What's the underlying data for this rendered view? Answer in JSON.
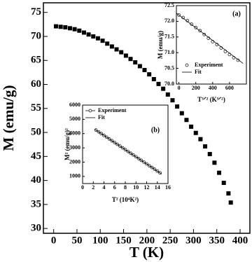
{
  "chart_data": [
    {
      "type": "scatter",
      "xlabel": "T (K)",
      "ylabel": "M (emu/g)",
      "xlim": [
        -22,
        421
      ],
      "ylim": [
        29,
        77
      ],
      "xticks": [
        0,
        50,
        100,
        150,
        200,
        250,
        300,
        350,
        400
      ],
      "yticks": [
        30,
        35,
        40,
        45,
        50,
        55,
        60,
        65,
        70,
        75
      ],
      "series": [
        {
          "marker": "square",
          "color": "#000000",
          "x": [
            5,
            15,
            25,
            35,
            45,
            55,
            65,
            75,
            85,
            95,
            105,
            115,
            125,
            135,
            145,
            155,
            165,
            175,
            185,
            195,
            205,
            215,
            225,
            235,
            245,
            255,
            265,
            275,
            285,
            295,
            305,
            315,
            325,
            335,
            345,
            355,
            365,
            375,
            380
          ],
          "values": [
            72.1,
            72.0,
            71.9,
            71.7,
            71.5,
            71.2,
            70.8,
            70.4,
            70.0,
            69.6,
            69.1,
            68.5,
            67.9,
            67.3,
            66.7,
            66.0,
            65.3,
            64.6,
            63.8,
            63.0,
            62.1,
            61.1,
            60.1,
            59.1,
            57.9,
            56.7,
            55.4,
            54.0,
            52.6,
            51.2,
            49.9,
            48.6,
            47.1,
            45.5,
            43.7,
            41.6,
            39.5,
            37.3,
            35.4
          ]
        }
      ]
    },
    {
      "type": "scatter",
      "annotation": "(a)",
      "xlabel": "T³ᐟ² (K³ᐟ²)",
      "ylabel": "M (emu/g)",
      "xlim": [
        -30,
        800
      ],
      "ylim": [
        70,
        72.5
      ],
      "xticks": [
        0,
        200,
        400,
        600
      ],
      "yticks": [
        {
          "value": 70,
          "label": "70.0"
        },
        70.5,
        {
          "value": 71,
          "label": "71.0"
        },
        71.5,
        {
          "value": 72,
          "label": "72.0"
        },
        72.5
      ],
      "series": [
        {
          "name": "Experiment",
          "marker": "circle",
          "color": "#000000",
          "x": [
            0,
            50,
            100,
            150,
            200,
            250,
            300,
            350,
            400,
            450,
            500,
            550,
            600,
            650,
            700
          ],
          "values": [
            72.2,
            72.12,
            72.02,
            71.91,
            71.8,
            71.7,
            71.58,
            71.46,
            71.35,
            71.26,
            71.15,
            71.04,
            70.94,
            70.84,
            70.76
          ]
        },
        {
          "name": "Fit",
          "marker": "line",
          "color": "#000000",
          "x": [
            -30,
            760
          ],
          "values": [
            72.26,
            70.66
          ]
        }
      ]
    },
    {
      "type": "scatter",
      "annotation": "(b)",
      "xlabel": "T² (10⁴K²)",
      "ylabel": "M² (emu/g)²",
      "xlim": [
        0,
        16
      ],
      "ylim": [
        500,
        6000
      ],
      "xticks": [
        0,
        2,
        4,
        6,
        8,
        10,
        12,
        14,
        16
      ],
      "yticks": [
        1000,
        2000,
        3000,
        4000,
        5000,
        6000
      ],
      "series": [
        {
          "name": "Experiment",
          "marker": "circle",
          "color": "#000000",
          "x": [
            2.5,
            3,
            3.5,
            4,
            4.5,
            5,
            5.5,
            6,
            6.5,
            7,
            7.5,
            8,
            8.5,
            9,
            9.5,
            10,
            10.5,
            11,
            11.5,
            12,
            12.5,
            13,
            13.5,
            14,
            14.5
          ],
          "values": [
            4250,
            4125,
            4000,
            3875,
            3750,
            3625,
            3500,
            3375,
            3250,
            3125,
            3000,
            2875,
            2750,
            2625,
            2500,
            2375,
            2250,
            2125,
            2000,
            1875,
            1750,
            1625,
            1500,
            1375,
            1250
          ]
        },
        {
          "name": "Fit",
          "marker": "line",
          "color": "#000000",
          "x": [
            2.3,
            14.8
          ],
          "values": [
            4300,
            1170
          ]
        }
      ]
    }
  ]
}
